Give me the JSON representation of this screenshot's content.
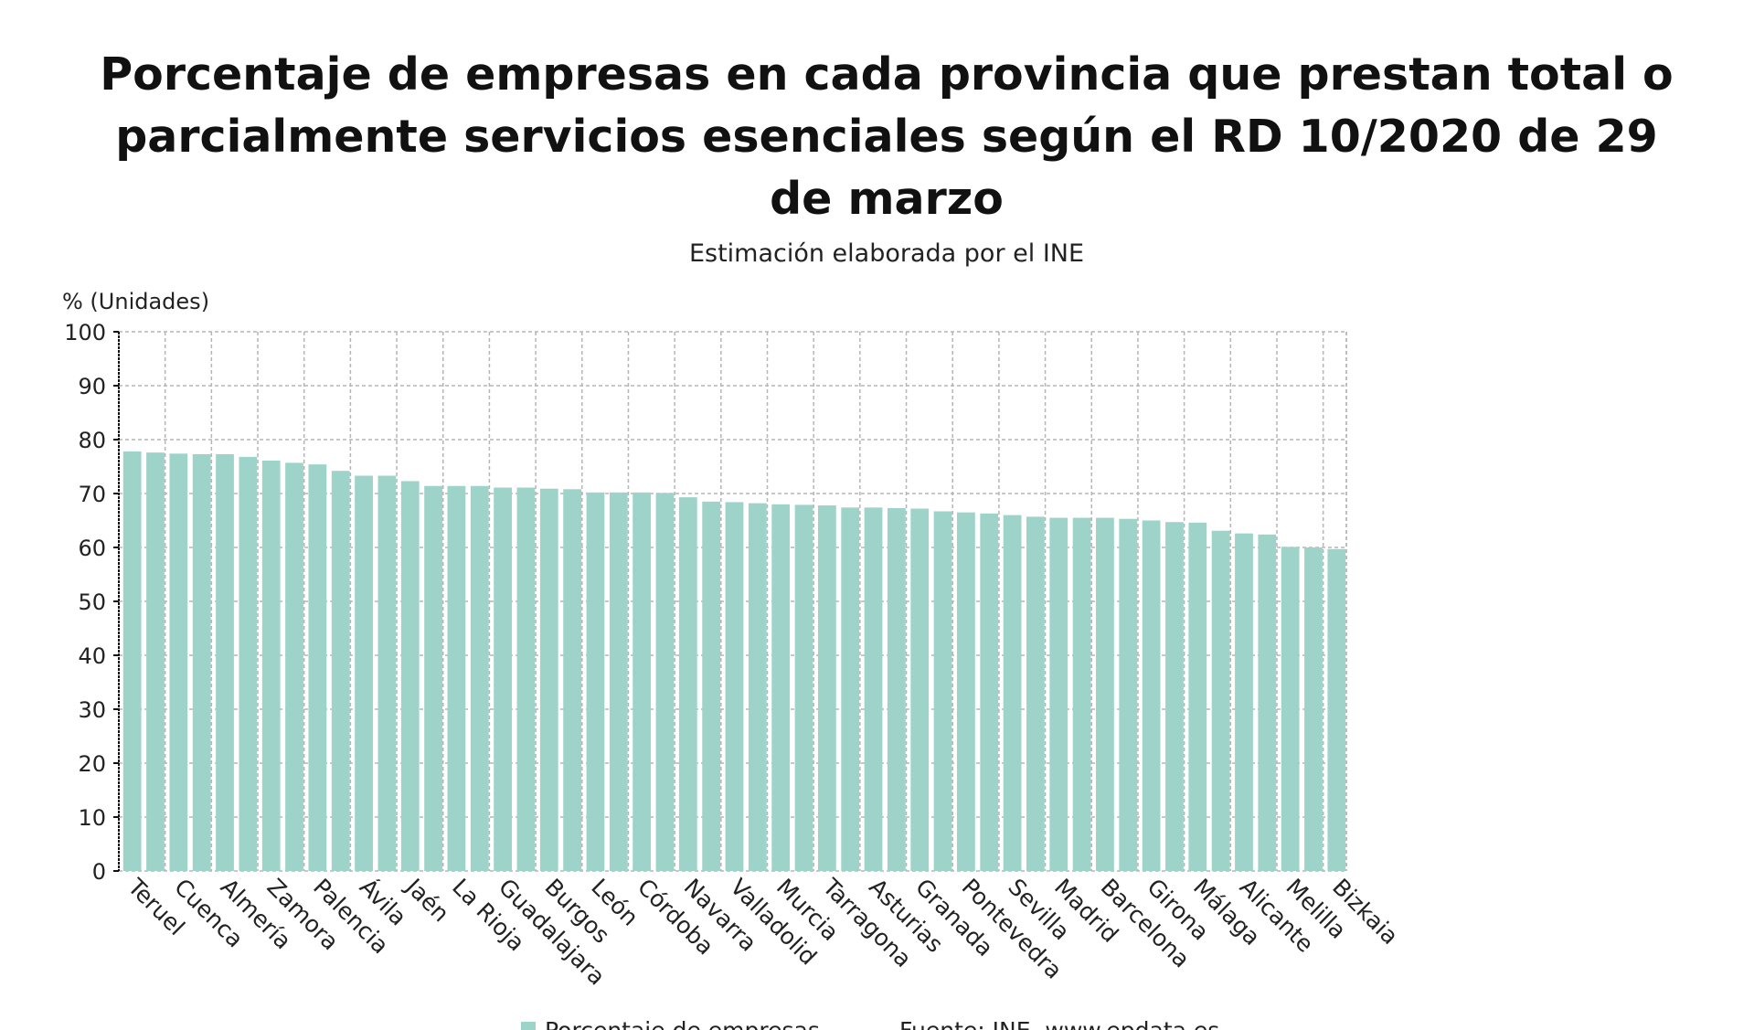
{
  "chart_data": {
    "type": "bar",
    "title": "Porcentaje de empresas en cada provincia que prestan total o parcialmente servicios esenciales según el RD 10/2020 de 29 de marzo",
    "subtitle": "Estimación elaborada por el INE",
    "ylabel": "% (Unidades)",
    "xlabel": "",
    "ylim": [
      0,
      100
    ],
    "yticks": [
      "0",
      "10",
      "20",
      "30",
      "40",
      "50",
      "60",
      "70",
      "80",
      "90",
      "100"
    ],
    "grid": true,
    "color": "#9dd3c8",
    "labeled_every": 2,
    "category_labels": [
      "Teruel",
      "Cuenca",
      "Almería",
      "Zamora",
      "Palencia",
      "Ávila",
      "Jaén",
      "La Rioja",
      "Guadalajara",
      "Burgos",
      "León",
      "Córdoba",
      "Navarra",
      "Valladolid",
      "Murcia",
      "Tarragona",
      "Asturias",
      "Granada",
      "Pontevedra",
      "Sevilla",
      "Madrid",
      "Barcelona",
      "Girona",
      "Málaga",
      "Alicante",
      "Melilla",
      "Bizkaia"
    ],
    "values": [
      77.8,
      77.6,
      77.4,
      77.3,
      77.3,
      76.8,
      76.1,
      75.7,
      75.4,
      74.2,
      73.3,
      73.3,
      72.3,
      71.4,
      71.4,
      71.4,
      71.1,
      71.1,
      70.9,
      70.8,
      70.2,
      70.2,
      70.2,
      70.1,
      69.3,
      68.5,
      68.4,
      68.2,
      68.0,
      67.9,
      67.8,
      67.4,
      67.4,
      67.3,
      67.2,
      66.7,
      66.5,
      66.3,
      66.0,
      65.7,
      65.5,
      65.5,
      65.5,
      65.3,
      65.0,
      64.7,
      64.6,
      63.1,
      62.6,
      62.4,
      60.1,
      60.0,
      59.7
    ],
    "legend": {
      "series": "Porcentaje de empresas",
      "source": "Fuente: INE, www.epdata.es",
      "placement": "bottom"
    }
  }
}
